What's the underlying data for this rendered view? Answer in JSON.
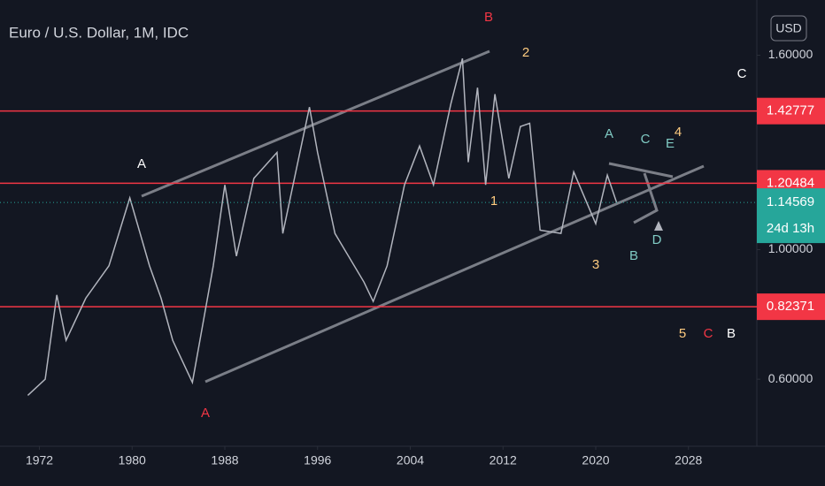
{
  "chart_data": {
    "type": "line",
    "title": "Euro / U.S. Dollar, 1M, IDC",
    "currency": "USD",
    "color": "#b2b5be",
    "x": [
      1971.0,
      1972.5,
      1973.5,
      1974.3,
      1976,
      1978,
      1979.8,
      1981.5,
      1982.5,
      1983.5,
      1985.2,
      1987,
      1988,
      1989,
      1990.5,
      1992.5,
      1993,
      1995.3,
      1996,
      1997.5,
      2000,
      2000.8,
      2002,
      2003.5,
      2004.8,
      2006,
      2007.5,
      2008.5,
      2009,
      2009.8,
      2010.5,
      2011.3,
      2012.5,
      2013.5,
      2014.3,
      2015.2,
      2017,
      2018.1,
      2020,
      2021,
      2021.8
    ],
    "values": [
      0.55,
      0.6,
      0.86,
      0.72,
      0.85,
      0.95,
      1.16,
      0.95,
      0.85,
      0.72,
      0.59,
      0.95,
      1.2,
      0.98,
      1.22,
      1.3,
      1.05,
      1.44,
      1.3,
      1.05,
      0.9,
      0.84,
      0.95,
      1.2,
      1.32,
      1.2,
      1.45,
      1.59,
      1.27,
      1.5,
      1.2,
      1.48,
      1.22,
      1.38,
      1.39,
      1.06,
      1.05,
      1.24,
      1.08,
      1.23,
      1.14569
    ],
    "xlim": [
      1968.6,
      2033.9
    ],
    "xticks": [
      1972,
      1980,
      1988,
      1996,
      2004,
      2012,
      2020,
      2028
    ],
    "ylim": [
      0.3931,
      1.7706
    ],
    "yticks": [
      {
        "value": 0.6,
        "label": "0.60000"
      },
      {
        "value": 1.0,
        "label": "1.00000"
      },
      {
        "value": 1.6,
        "label": "1.60000"
      }
    ],
    "levels": [
      1.42777,
      1.20484,
      0.82371
    ],
    "level_color": "#f23645",
    "last_price": 1.14569,
    "countdown": "24d 13h",
    "annotations": [
      {
        "text": "B",
        "color": "#f23645"
      },
      {
        "text": "2",
        "color": "#ffcc80"
      },
      {
        "text": "C",
        "color": "#ffffff"
      },
      {
        "text": "A",
        "color": "#ffffff"
      },
      {
        "text": "1",
        "color": "#ffcc80"
      },
      {
        "text": "A",
        "color": "#80cbc4"
      },
      {
        "text": "C",
        "color": "#80cbc4"
      },
      {
        "text": "E",
        "color": "#80cbc4"
      },
      {
        "text": "4",
        "color": "#ffcc80"
      },
      {
        "text": "3",
        "color": "#ffcc80"
      },
      {
        "text": "B",
        "color": "#80cbc4"
      },
      {
        "text": "D",
        "color": "#80cbc4"
      },
      {
        "text": "A",
        "color": "#f23645"
      },
      {
        "text": "5",
        "color": "#ffcc80"
      },
      {
        "text": "C",
        "color": "#f23645"
      },
      {
        "text": "B",
        "color": "#ffffff"
      }
    ]
  }
}
